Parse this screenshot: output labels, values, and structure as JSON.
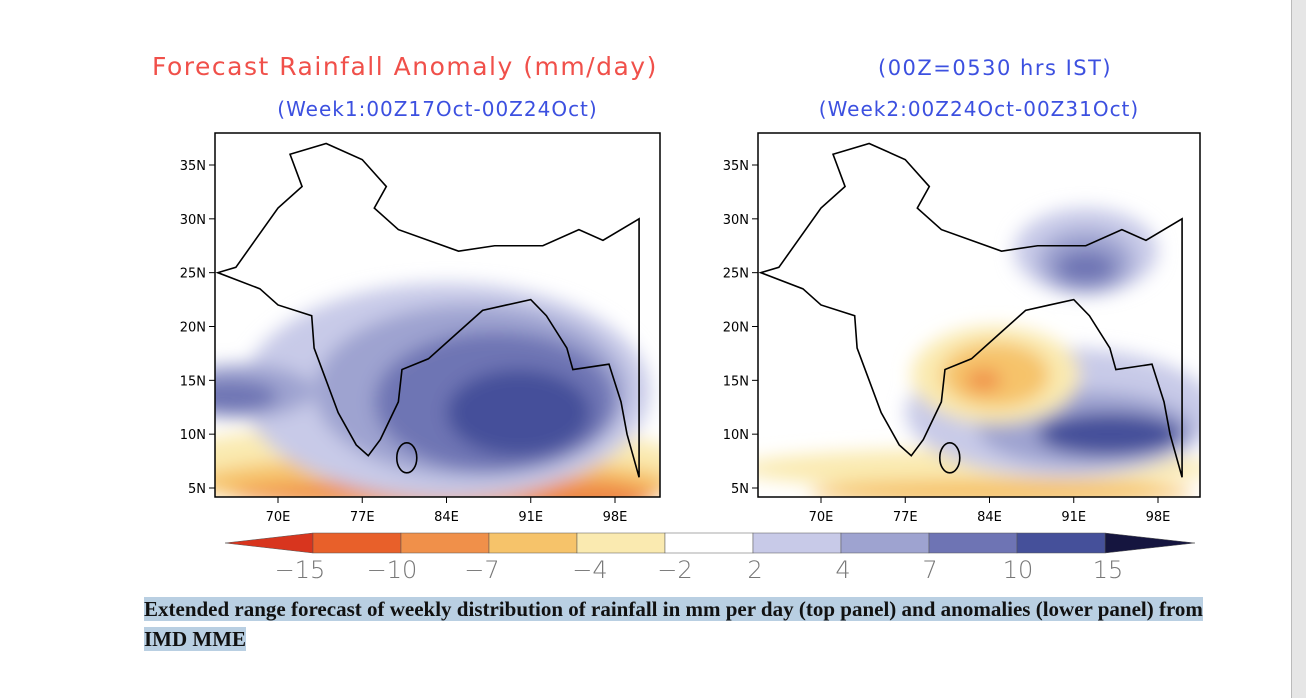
{
  "header": {
    "title": "Forecast Rainfall Anomaly (mm/day)",
    "note": "(00Z=0530 hrs IST)"
  },
  "panels": [
    {
      "title": "(Week1:00Z17Oct-00Z24Oct)",
      "lat_ticks": [
        "35N",
        "30N",
        "25N",
        "20N",
        "15N",
        "10N",
        "5N"
      ],
      "lon_ticks": [
        "70E",
        "77E",
        "84E",
        "91E",
        "98E"
      ]
    },
    {
      "title": "(Week2:00Z24Oct-00Z31Oct)",
      "lat_ticks": [
        "35N",
        "30N",
        "25N",
        "20N",
        "15N",
        "10N",
        "5N"
      ],
      "lon_ticks": [
        "70E",
        "77E",
        "84E",
        "91E",
        "98E"
      ]
    }
  ],
  "colorbar": {
    "labels": [
      "−15",
      "−10",
      "−7",
      "−4",
      "−2",
      "2",
      "4",
      "7",
      "10",
      "15"
    ]
  },
  "caption": "Extended range forecast of weekly distribution of rainfall in mm per day (top panel) and anomalies (lower panel) from IMD MME"
}
